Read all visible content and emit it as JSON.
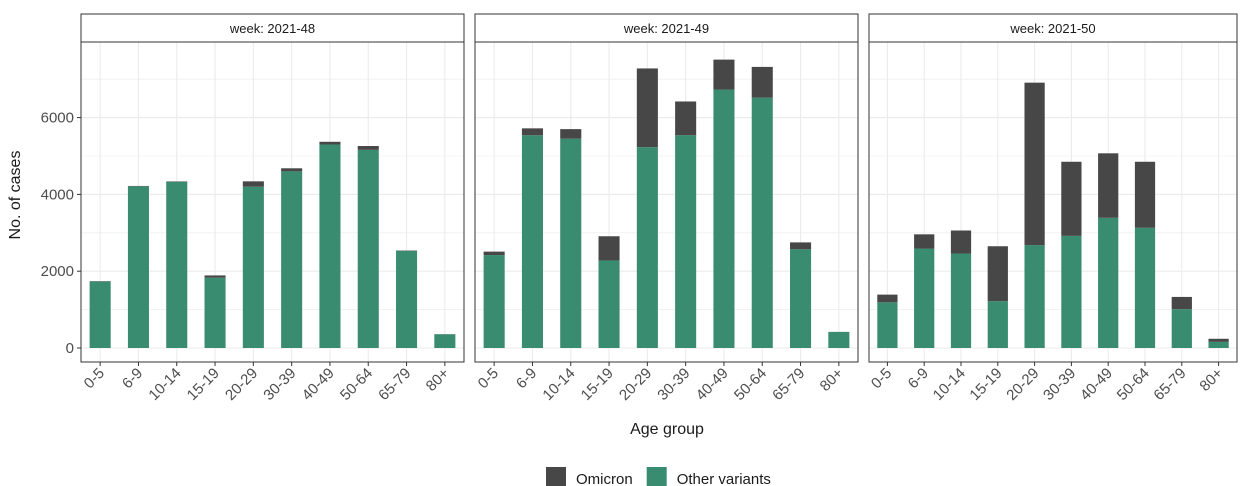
{
  "chart_data": {
    "type": "bar",
    "stacked": true,
    "facet_label_prefix": "week: ",
    "xlabel": "Age group",
    "ylabel": "No. of cases",
    "ylim": [
      0,
      7800
    ],
    "yticks": [
      0,
      2000,
      4000,
      6000
    ],
    "categories": [
      "0-5",
      "6-9",
      "10-14",
      "15-19",
      "20-29",
      "30-39",
      "40-49",
      "50-64",
      "65-79",
      "80+"
    ],
    "colors": {
      "Omicron": "#474747",
      "Other variants": "#3a8c70"
    },
    "legend": {
      "position": "bottom",
      "items": [
        "Omicron",
        "Other variants"
      ]
    },
    "facets": [
      {
        "week": "2021-48",
        "series": [
          {
            "name": "Other variants",
            "values": [
              1730,
              4210,
              4330,
              1830,
              4200,
              4600,
              5300,
              5160,
              2530,
              355
            ]
          },
          {
            "name": "Omicron",
            "values": [
              10,
              10,
              10,
              60,
              140,
              80,
              70,
              100,
              10,
              5
            ]
          }
        ]
      },
      {
        "week": "2021-49",
        "series": [
          {
            "name": "Other variants",
            "values": [
              2420,
              5540,
              5450,
              2280,
              5230,
              5540,
              6730,
              6520,
              2570,
              420
            ]
          },
          {
            "name": "Omicron",
            "values": [
              90,
              180,
              250,
              630,
              2050,
              880,
              780,
              800,
              180,
              0
            ]
          }
        ]
      },
      {
        "week": "2021-50",
        "series": [
          {
            "name": "Other variants",
            "values": [
              1190,
              2590,
              2460,
              1220,
              2680,
              2920,
              3390,
              3130,
              1010,
              160
            ]
          },
          {
            "name": "Omicron",
            "values": [
              200,
              370,
              600,
              1430,
              4230,
              1930,
              1680,
              1720,
              320,
              80
            ]
          }
        ]
      }
    ]
  }
}
